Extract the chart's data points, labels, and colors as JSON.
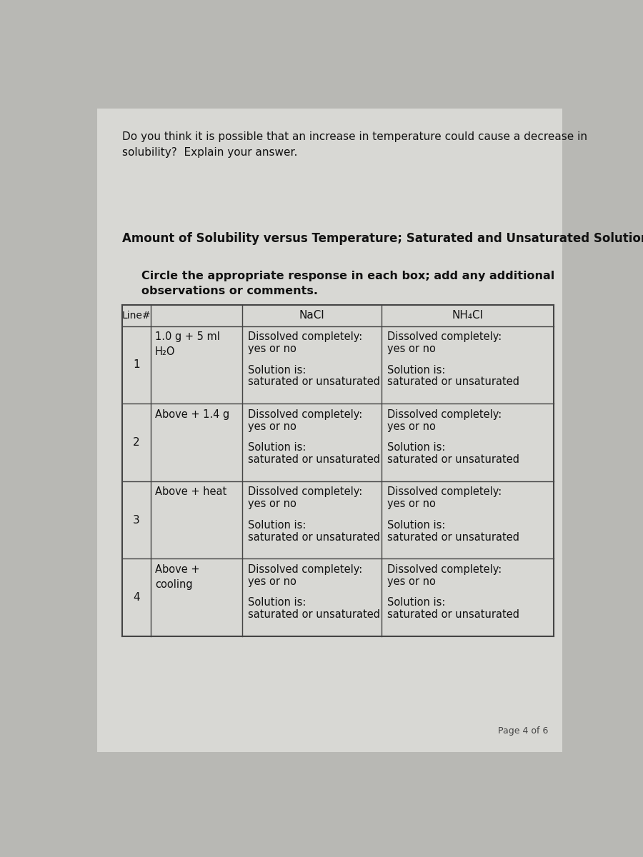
{
  "bg_color": "#b8b8b4",
  "paper_color": "#d8d8d4",
  "text_color": "#111111",
  "line_color": "#444444",
  "intro_line1": "Do you think it is possible that an increase in temperature could cause a decrease in",
  "intro_line2": "solubility?  Explain your answer.",
  "section_title": "Amount of Solubility versus Temperature; Saturated and Unsaturated Solutions",
  "instr_line1": "Circle the appropriate response in each box; add any additional",
  "instr_line2": "observations or comments.",
  "header_line": [
    "Line#",
    "NaCl",
    "NH₄Cl"
  ],
  "rows": [
    {
      "line": "1",
      "condition": "1.0 g + 5 ml\nH₂O"
    },
    {
      "line": "2",
      "condition": "Above + 1.4 g"
    },
    {
      "line": "3",
      "condition": "Above + heat"
    },
    {
      "line": "4",
      "condition": "Above +\ncooling"
    }
  ],
  "cell_text_line1": "Dissolved completely:",
  "cell_text_line2": "yes or no",
  "cell_text_line3": "Solution is:",
  "cell_text_line4": "saturated or unsaturated",
  "page_number": "Page 4 of 6"
}
